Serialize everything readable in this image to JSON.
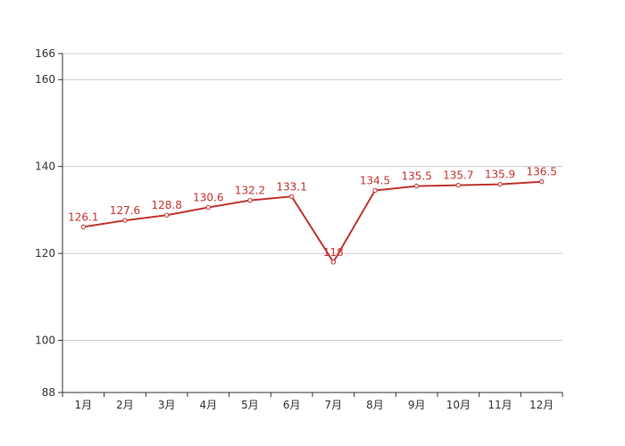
{
  "chart_data": {
    "type": "line",
    "title": "",
    "xlabel": "",
    "ylabel": "",
    "categories": [
      "1月",
      "2月",
      "3月",
      "4月",
      "5月",
      "6月",
      "7月",
      "8月",
      "9月",
      "10月",
      "11月",
      "12月"
    ],
    "series": [
      {
        "values": [
          126.1,
          127.6,
          128.8,
          130.6,
          132.2,
          133.1,
          118,
          134.5,
          135.5,
          135.7,
          135.9,
          136.5
        ],
        "color": "#c23531"
      }
    ],
    "ylim": [
      88,
      166
    ],
    "yticks": [
      88,
      100,
      120,
      140,
      160,
      166
    ],
    "grid": true,
    "data_labels": true,
    "legend": "none"
  }
}
